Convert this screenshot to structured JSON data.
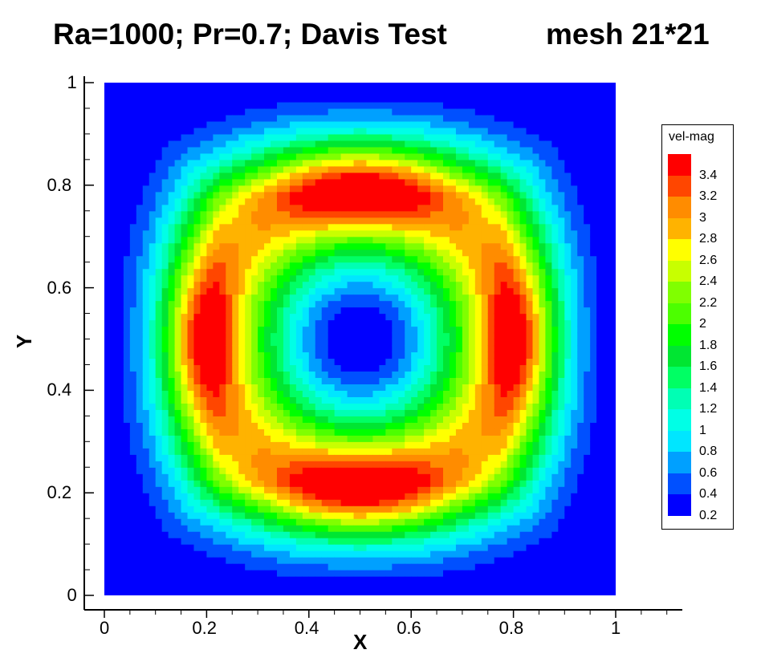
{
  "title": {
    "left": "Ra=1000; Pr=0.7; Davis Test",
    "right": "mesh 21*21"
  },
  "chart_data": {
    "type": "heatmap",
    "variable": "vel-mag",
    "xlabel": "X",
    "ylabel": "Y",
    "xlim": [
      0,
      1
    ],
    "ylim": [
      0,
      1
    ],
    "x_ticks": [
      "0",
      "0.2",
      "0.4",
      "0.6",
      "0.8",
      "1"
    ],
    "y_ticks": [
      "0",
      "0.2",
      "0.4",
      "0.6",
      "0.8",
      "1"
    ],
    "legend_title": "vel-mag",
    "legend_placement": "right",
    "levels": [
      {
        "label": "3.4",
        "color": "#ff0000"
      },
      {
        "label": "3.2",
        "color": "#ff4600"
      },
      {
        "label": "3",
        "color": "#ff8c00"
      },
      {
        "label": "2.8",
        "color": "#ffb300"
      },
      {
        "label": "2.6",
        "color": "#ffff00"
      },
      {
        "label": "2.4",
        "color": "#c8ff00"
      },
      {
        "label": "2.2",
        "color": "#80ff00"
      },
      {
        "label": "2",
        "color": "#4cff00"
      },
      {
        "label": "1.8",
        "color": "#00ff00"
      },
      {
        "label": "1.6",
        "color": "#00e632"
      },
      {
        "label": "1.4",
        "color": "#00ff64"
      },
      {
        "label": "1.2",
        "color": "#00ffb4"
      },
      {
        "label": "1",
        "color": "#00ffe6"
      },
      {
        "label": "0.8",
        "color": "#00e6ff"
      },
      {
        "label": "0.6",
        "color": "#00a0ff"
      },
      {
        "label": "0.4",
        "color": "#0050ff"
      },
      {
        "label": "0.2",
        "color": "#0000ff"
      }
    ]
  }
}
